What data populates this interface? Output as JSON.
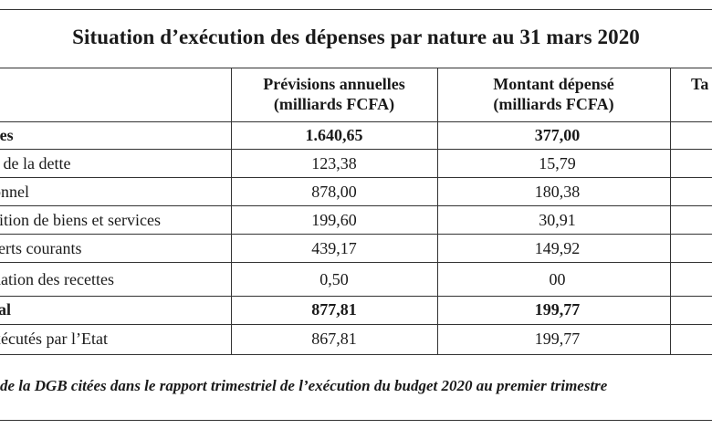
{
  "title": "Situation d’exécution des dépenses par nature au 31 mars 2020",
  "table": {
    "headers": {
      "col1_line1": "Prévisions annuelles",
      "col1_line2": "(milliards FCFA)",
      "col2_line1": "Montant dépensé",
      "col2_line2": "(milliards FCFA)",
      "col3_partial": "Ta"
    },
    "rows": [
      {
        "label": "res",
        "previsions": "1.640,65",
        "montant": "377,00",
        "bold": true
      },
      {
        "label": "s de la dette",
        "previsions": "123,38",
        "montant": "15,79",
        "bold": false
      },
      {
        "label": "onnel",
        "previsions": "878,00",
        "montant": "180,38",
        "bold": false
      },
      {
        "label": "sition de biens et services",
        "previsions": "199,60",
        "montant": "30,91",
        "bold": false
      },
      {
        "label": "ferts courants",
        "previsions": "439,17",
        "montant": "149,92",
        "bold": false
      },
      {
        "label": "uation des recettes",
        "previsions": "0,50",
        "montant": "00",
        "bold": false
      },
      {
        "label": "tal",
        "previsions": "877,81",
        "montant": "199,77",
        "bold": true
      },
      {
        "label": "xécutés par l’Etat",
        "previsions": "867,81",
        "montant": "199,77",
        "bold": false
      }
    ]
  },
  "source": "de la DGB citées dans le rapport trimestriel de l’exécution du budget 2020 au premier trimestre"
}
